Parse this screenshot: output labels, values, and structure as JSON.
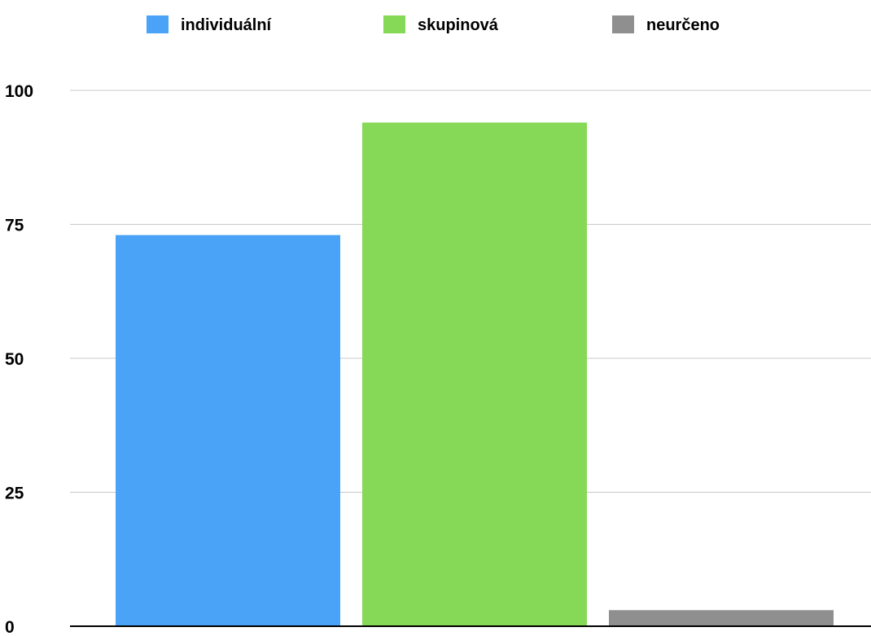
{
  "chart_data": {
    "type": "bar",
    "title": "",
    "xlabel": "",
    "ylabel": "",
    "ylim": [
      0,
      100
    ],
    "yticks": [
      0,
      25,
      50,
      75,
      100
    ],
    "grid": true,
    "legend_position": "top",
    "categories": [
      "individuální",
      "skupinová",
      "neurčeno"
    ],
    "values": [
      73,
      94,
      3
    ],
    "colors": [
      "#4aa3f7",
      "#86d957",
      "#8f8f8f"
    ],
    "legend": [
      {
        "label": "individuální",
        "color": "#4aa3f7"
      },
      {
        "label": "skupinová",
        "color": "#86d957"
      },
      {
        "label": "neurčeno",
        "color": "#8f8f8f"
      }
    ]
  }
}
